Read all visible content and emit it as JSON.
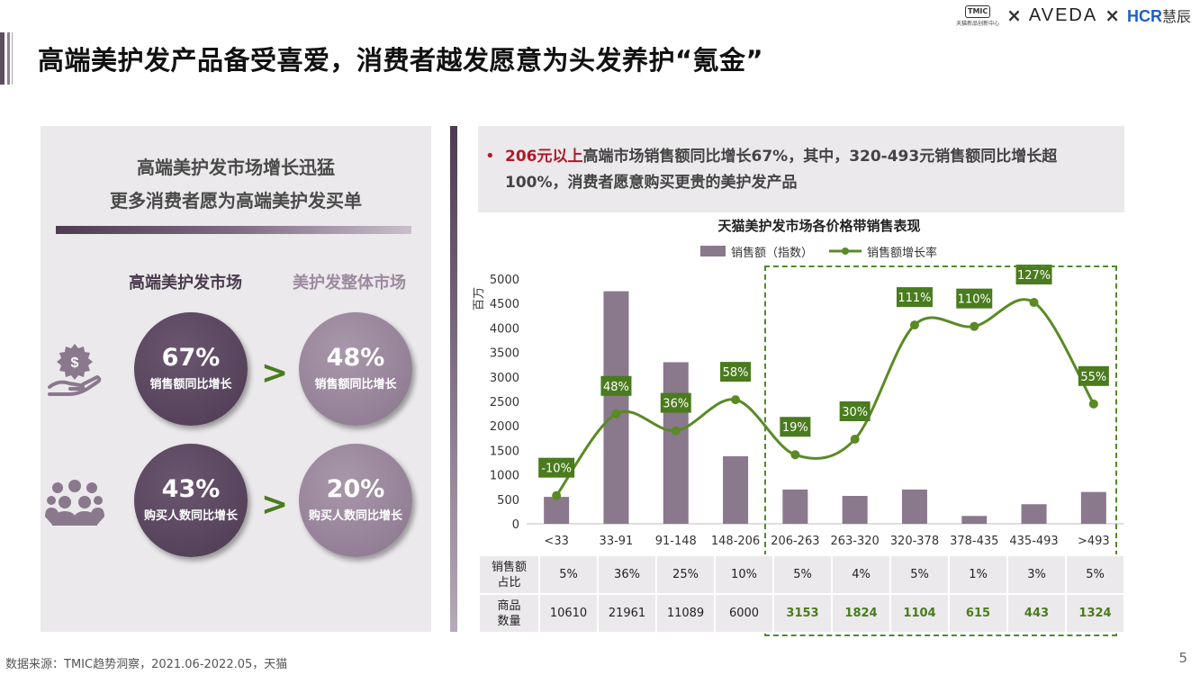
{
  "header": {
    "title": "高端美护发产品备受喜爱，消费者越发愿意为头发养护“氪金”",
    "logos": {
      "tmic": "TMIC",
      "tmic_sub": "天猫新品创新中心",
      "x": "×",
      "aveda": "AVEDA",
      "hcr": "HCR",
      "hcr_cn": "慧辰"
    }
  },
  "left_panel": {
    "headline_1": "高端美护发市场增长迅猛",
    "headline_2": "更多消费者愿为高端美护发买单",
    "col_high": "高端美护发市场",
    "col_all": "美护发整体市场",
    "gt": ">",
    "rows": [
      {
        "icon": "dollar-hand-icon",
        "high_pct": "67%",
        "high_label": "销售额同比增长",
        "all_pct": "48%",
        "all_label": "销售额同比增长"
      },
      {
        "icon": "people-group-icon",
        "high_pct": "43%",
        "high_label": "购买人数同比增长",
        "all_pct": "20%",
        "all_label": "购买人数同比增长"
      }
    ]
  },
  "note": {
    "bullet": "•",
    "highlight": "206元以上",
    "text": "高端市场销售额同比增长67%，其中，320-493元销售额同比增长超100%，消费者愿意购买更贵的美护发产品"
  },
  "chart_data": {
    "type": "bar+line",
    "title": "天猫美护发市场各价格带销售表现",
    "ylabel": "百万",
    "ylim": [
      0,
      5000
    ],
    "yticks": [
      0,
      500,
      1000,
      1500,
      2000,
      2500,
      3000,
      3500,
      4000,
      4500,
      5000
    ],
    "categories": [
      "<33",
      "33-91",
      "91-148",
      "148-206",
      "206-263",
      "263-320",
      "320-378",
      "378-435",
      "435-493",
      ">493"
    ],
    "series": [
      {
        "name": "销售额（指数）",
        "type": "bar",
        "values": [
          550,
          4750,
          3300,
          1380,
          700,
          570,
          700,
          160,
          400,
          650
        ]
      },
      {
        "name": "销售额增长率",
        "type": "line",
        "values": [
          -10,
          48,
          36,
          58,
          19,
          30,
          111,
          110,
          127,
          55
        ],
        "labels": [
          "-10%",
          "48%",
          "36%",
          "58%",
          "19%",
          "30%",
          "111%",
          "110%",
          "127%",
          "55%"
        ]
      }
    ],
    "highlight_range": [
      "206-263",
      ">493"
    ],
    "colors": {
      "bar": "#8a788d",
      "line": "#5a8a24",
      "label_bg": "#4a7b1e",
      "highlight_box": "#4f8a2a"
    }
  },
  "table": {
    "row1_header": [
      "销售额",
      "占比"
    ],
    "row1": [
      "5%",
      "36%",
      "25%",
      "10%",
      "5%",
      "4%",
      "5%",
      "1%",
      "3%",
      "5%"
    ],
    "row2_header": [
      "商品",
      "数量"
    ],
    "row2": [
      "10610",
      "21961",
      "11089",
      "6000",
      "3153",
      "1824",
      "1104",
      "615",
      "443",
      "1324"
    ]
  },
  "footer": {
    "source": "数据来源：TMIC趋势洞察，2021.06-2022.05，天猫",
    "page": "5"
  }
}
